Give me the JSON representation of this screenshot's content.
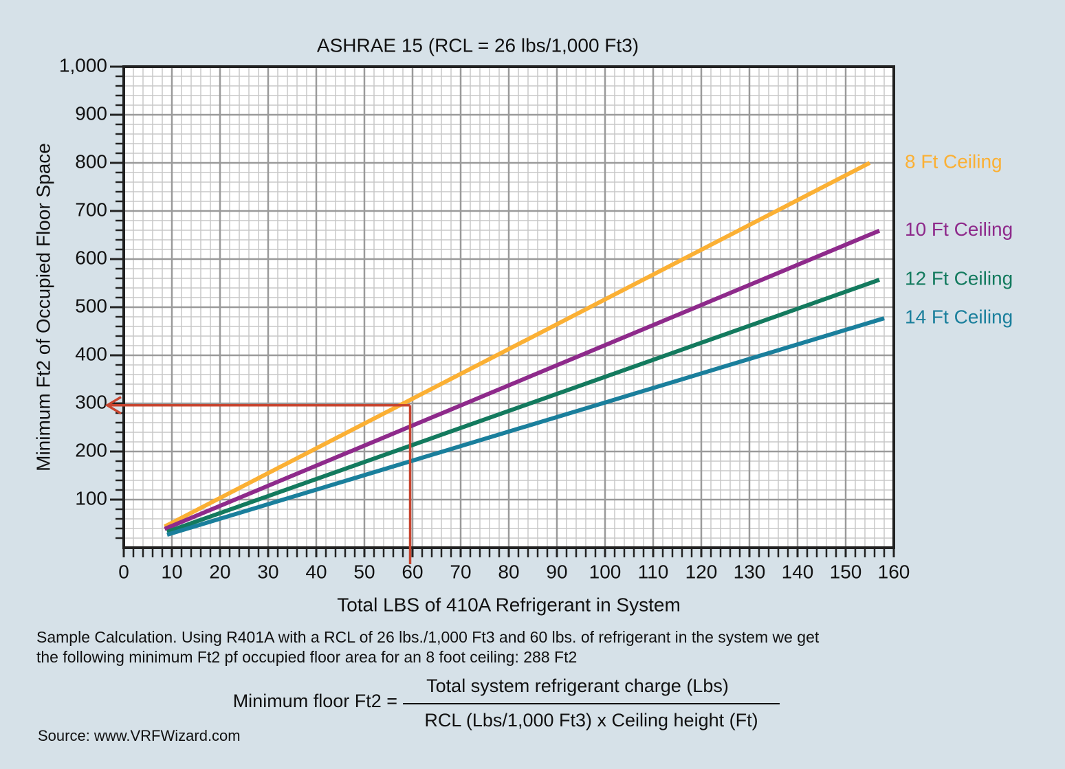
{
  "chart_data": {
    "type": "line",
    "title": "ASHRAE 15 (RCL = 26 lbs/1,000 Ft3)",
    "x_label": "Total LBS of 410A Refrigerant in System",
    "y_label": "Minimum Ft2 of Occupied Floor Space",
    "xlim": [
      0,
      160
    ],
    "xticks": [
      0,
      10,
      20,
      30,
      40,
      50,
      60,
      70,
      80,
      90,
      100,
      110,
      120,
      130,
      140,
      150,
      160
    ],
    "ylim": [
      0,
      1000
    ],
    "yticks": [
      100,
      200,
      300,
      400,
      500,
      600,
      700,
      800,
      900,
      {
        "value": 1000,
        "label": "1,000"
      }
    ],
    "grid": true,
    "minor_grid_divisions": 5,
    "series": [
      {
        "name": "8 Ft Ceiling",
        "color": "#fbb034",
        "x": [
          8.5,
          155
        ],
        "values": [
          44,
          800
        ]
      },
      {
        "name": "10 Ft Ceiling",
        "color": "#8e2a8b",
        "x": [
          8.5,
          157
        ],
        "values": [
          39,
          659
        ]
      },
      {
        "name": "12 Ft Ceiling",
        "color": "#137a5e",
        "x": [
          9,
          157
        ],
        "values": [
          33,
          557
        ]
      },
      {
        "name": "14 Ft Ceiling",
        "color": "#1a7f9c",
        "x": [
          9,
          158
        ],
        "values": [
          27,
          477
        ]
      }
    ],
    "annotation": {
      "x": 59.5,
      "y": 296,
      "color": "#c8452f"
    }
  },
  "notes": {
    "sample_calculation": [
      "Sample Calculation. Using R401A with a RCL of 26 lbs./1,000 Ft3 and 60 lbs. of refrigerant in the system we get",
      "the following minimum Ft2 pf occupied floor area for an 8 foot ceiling: 288 Ft2"
    ],
    "formula_left": "Minimum floor Ft2 =",
    "formula_numerator": "Total system refrigerant charge (Lbs)",
    "formula_denominator": "RCL (Lbs/1,000 Ft3) x Ceiling height (Ft)",
    "source": "Source: www.VRFWizard.com"
  }
}
